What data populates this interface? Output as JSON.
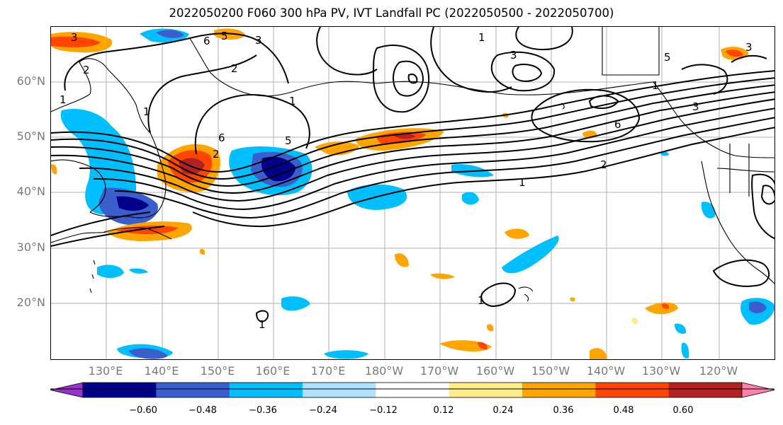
{
  "title": "2022050200 F060 300 hPa PV, IVT Landfall PC (2022050500 - 2022050700)",
  "lat_labels": [
    "60°N",
    "50°N",
    "40°N",
    "30°N",
    "20°N"
  ],
  "lon_labels": [
    "130°E",
    "140°E",
    "150°E",
    "160°E",
    "170°E",
    "180°W",
    "170°W",
    "160°W",
    "150°W",
    "140°W",
    "130°W",
    "120°W"
  ],
  "colorbar": {
    "ticks": [
      "−0.60",
      "−0.48",
      "−0.36",
      "−0.24",
      "−0.12",
      "0.12",
      "0.24",
      "0.36",
      "0.48",
      "0.60"
    ],
    "colors": [
      "#9932cc",
      "#00008b",
      "#3a5fcd",
      "#00bfff",
      "#b0e2ff",
      "#ffffff",
      "#ffec8b",
      "#ffa500",
      "#ff4500",
      "#b22222",
      "#ff82ab"
    ]
  },
  "contour_labels": [
    "3",
    "1",
    "2",
    "3",
    "6",
    "5",
    "1",
    "2",
    "5",
    "6",
    "2",
    "1",
    "1",
    "6",
    "3",
    "5",
    "1",
    "2",
    "3",
    "1",
    "1",
    "3",
    "1"
  ]
}
